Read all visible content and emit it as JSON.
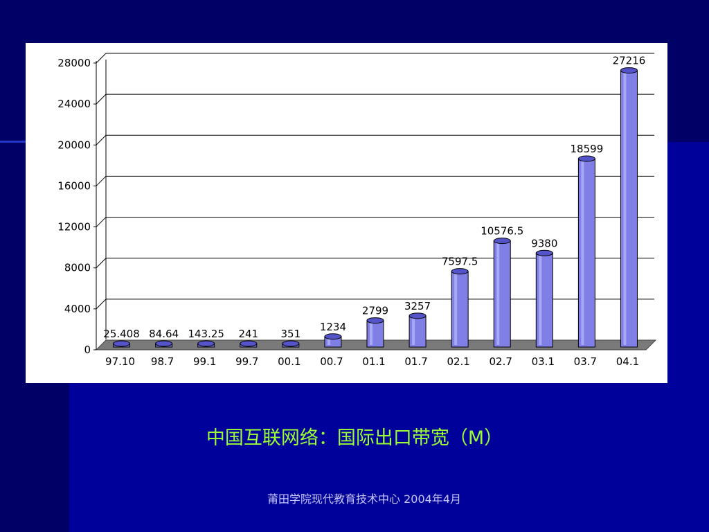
{
  "caption": "中国互联网络：国际出口带宽（M）",
  "footer": "莆田学院现代教育技术中心 2004年4月",
  "colors": {
    "background_dark": "#000066",
    "background_blue": "#00009a",
    "bar_fill": "#7f7fe6",
    "caption_color": "#99ff33"
  },
  "chart_data": {
    "type": "bar",
    "categories": [
      "97.10",
      "98.7",
      "99.1",
      "99.7",
      "00.1",
      "00.7",
      "01.1",
      "01.7",
      "02.1",
      "02.7",
      "03.1",
      "03.7",
      "04.1"
    ],
    "values": [
      25.408,
      84.64,
      143.25,
      241,
      351,
      1234,
      2799,
      3257,
      7597.5,
      10576.5,
      9380,
      18599,
      27216
    ],
    "value_labels": [
      "25.408",
      "84.64",
      "143.25",
      "241",
      "351",
      "1234",
      "2799",
      "3257",
      "7597.5",
      "10576.5",
      "9380",
      "18599",
      "27216"
    ],
    "y_ticks": [
      "0",
      "4000",
      "8000",
      "12000",
      "16000",
      "20000",
      "24000",
      "28000"
    ],
    "ylim": [
      0,
      28000
    ],
    "grid": true,
    "title": "",
    "xlabel": "",
    "ylabel": ""
  }
}
